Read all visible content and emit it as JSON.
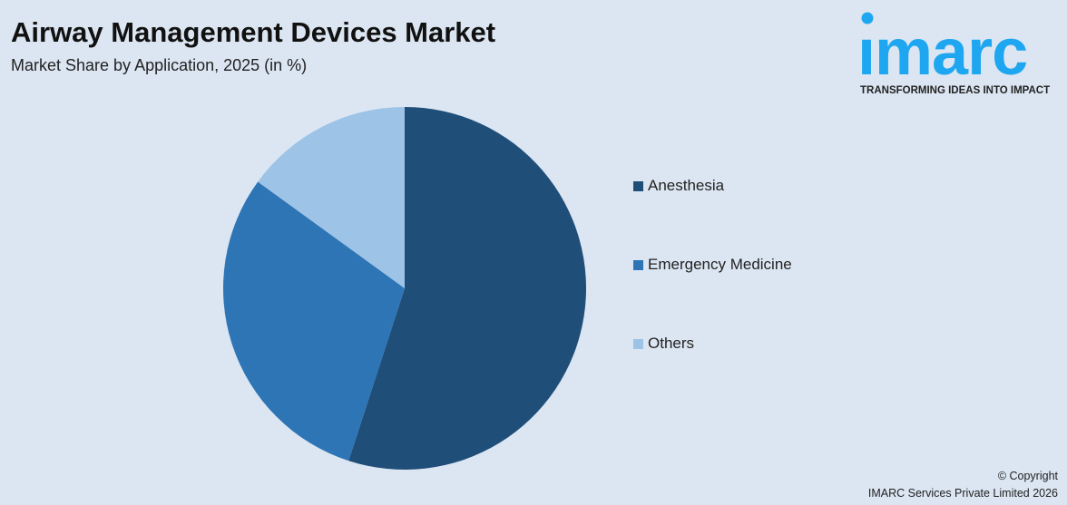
{
  "header": {
    "title": "Airway Management Devices Market",
    "subtitle": "Market Share by Application, 2025 (in %)"
  },
  "logo": {
    "word": "imarc",
    "tagline": "TRANSFORMING IDEAS INTO IMPACT",
    "color": "#1ea7f0"
  },
  "chart_data": {
    "type": "pie",
    "title": "Airway Management Devices Market",
    "subtitle": "Market Share by Application, 2025 (in %)",
    "categories": [
      "Anesthesia",
      "Emergency Medicine",
      "Others"
    ],
    "values": [
      55,
      30,
      15
    ],
    "colors": [
      "#1f4e79",
      "#2e75b6",
      "#9dc3e6"
    ],
    "start_angle": "12 o'clock, clockwise",
    "legend": "right",
    "data_labels": false
  },
  "footer": {
    "copyright": "© Copyright",
    "company": "IMARC Services Private Limited 2026"
  }
}
